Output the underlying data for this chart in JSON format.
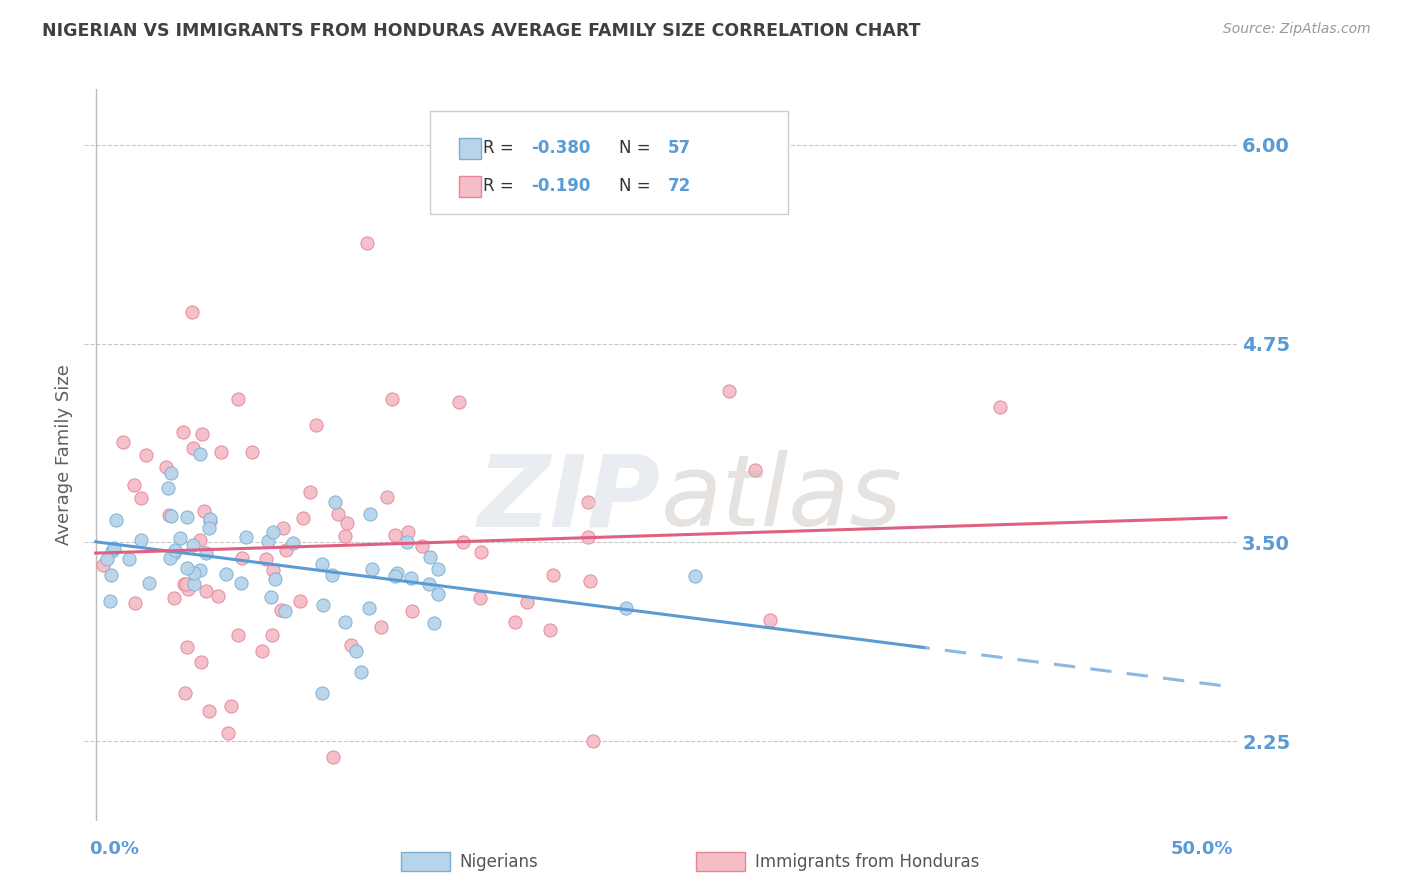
{
  "title": "NIGERIAN VS IMMIGRANTS FROM HONDURAS AVERAGE FAMILY SIZE CORRELATION CHART",
  "source": "Source: ZipAtlas.com",
  "ylabel": "Average Family Size",
  "yticks": [
    2.25,
    3.5,
    4.75,
    6.0
  ],
  "ymin": 1.75,
  "ymax": 6.35,
  "xmin": -0.005,
  "xmax": 0.505,
  "nigeria_scatter_face": "#b8d4ea",
  "nigeria_scatter_edge": "#7aafd4",
  "honduras_scatter_face": "#f4bec7",
  "honduras_scatter_edge": "#e8849a",
  "nigeria_line_color": "#5b9bd5",
  "honduras_line_color": "#e06080",
  "grid_color": "#c8c8c8",
  "title_color": "#404040",
  "tick_color": "#5b9bd5",
  "bottom_label1": "Nigerians",
  "bottom_label2": "Immigrants from Honduras",
  "background_color": "#ffffff"
}
